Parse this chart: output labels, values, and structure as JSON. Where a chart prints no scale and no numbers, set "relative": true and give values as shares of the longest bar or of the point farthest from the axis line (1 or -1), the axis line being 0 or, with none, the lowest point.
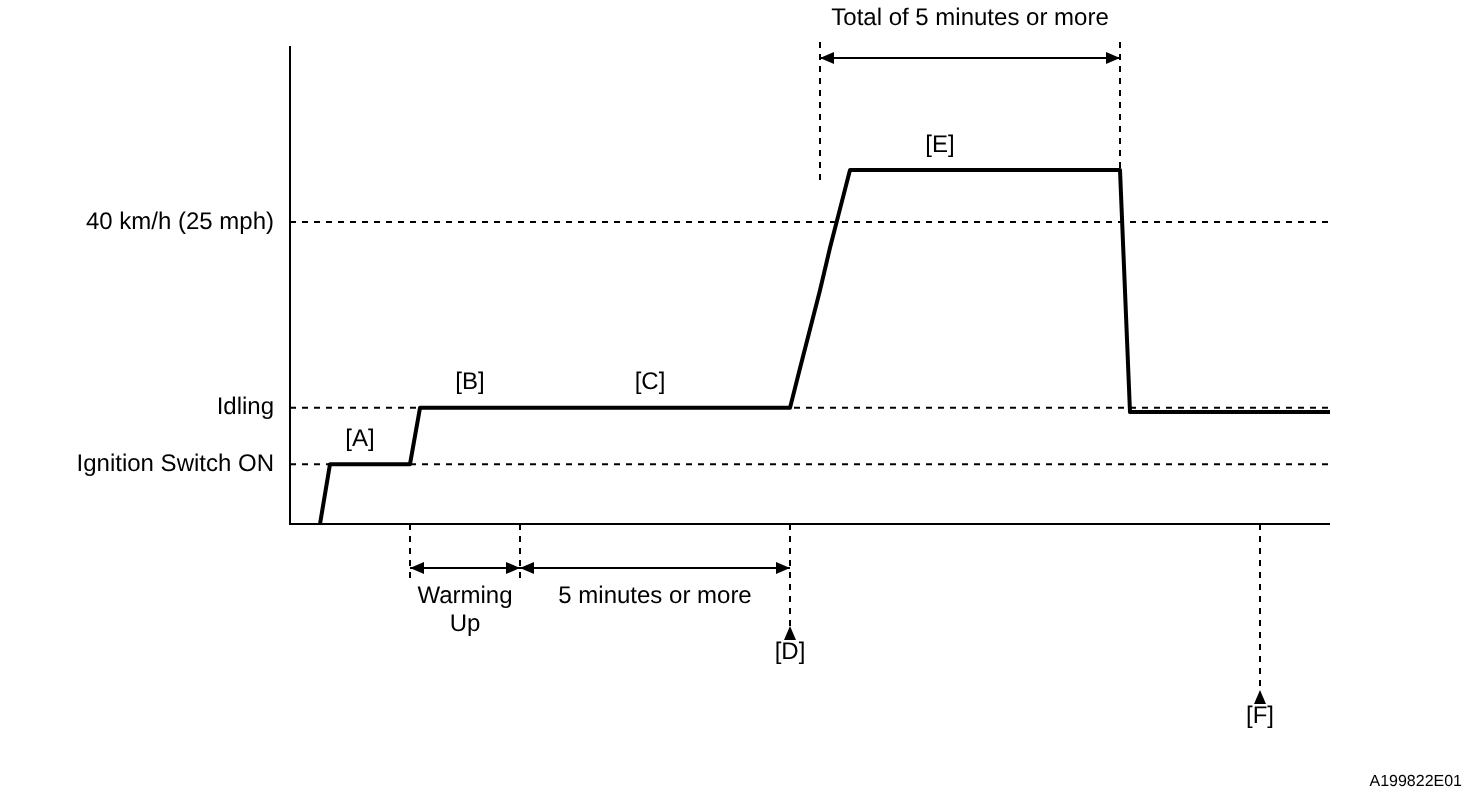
{
  "chart_data": {
    "type": "line",
    "relative": true,
    "tick_labels": false,
    "legend": false,
    "marker": "none",
    "line_style": "solid",
    "categories": [
      null,
      null,
      null,
      null,
      null,
      null,
      null,
      null,
      null,
      null,
      null,
      null,
      null,
      null,
      null,
      null,
      null,
      null,
      null,
      null,
      null,
      null,
      null,
      null,
      null,
      null,
      null,
      null,
      null,
      null,
      null,
      null,
      null,
      null,
      null,
      null,
      null,
      null,
      null,
      null,
      null,
      null,
      null,
      null,
      null,
      null,
      null,
      null,
      null,
      null,
      null,
      null,
      null,
      null,
      null,
      null,
      null,
      null,
      null,
      null,
      null,
      null,
      null,
      null,
      null,
      null,
      null,
      null,
      null,
      null,
      null,
      null,
      null,
      null,
      null,
      null,
      null,
      null,
      null,
      null,
      null,
      null,
      null,
      null,
      null,
      null,
      null,
      null,
      null,
      null,
      null,
      null,
      null,
      null,
      null,
      null,
      null,
      null,
      null,
      null,
      null,
      null,
      null,
      null,
      null
    ],
    "values": [
      null,
      null,
      null,
      0,
      0.169,
      0.169,
      0.169,
      0.169,
      0.169,
      0.169,
      0.169,
      0.169,
      0.169,
      0.328,
      0.328,
      0.328,
      0.328,
      0.328,
      0.328,
      0.328,
      0.328,
      0.328,
      0.328,
      0.328,
      0.328,
      0.328,
      0.328,
      0.328,
      0.328,
      0.328,
      0.328,
      0.328,
      0.328,
      0.328,
      0.328,
      0.328,
      0.328,
      0.328,
      0.328,
      0.328,
      0.328,
      0.328,
      0.328,
      0.328,
      0.328,
      0.328,
      0.328,
      0.328,
      0.328,
      0.328,
      0.328,
      0.44,
      0.55,
      0.66,
      0.78,
      0.89,
      1,
      1,
      1,
      1,
      1,
      1,
      1,
      1,
      1,
      1,
      1,
      1,
      1,
      1,
      1,
      1,
      1,
      1,
      1,
      1,
      1,
      1,
      1,
      1,
      1,
      1,
      1,
      1,
      0.316,
      0.316,
      0.316,
      0.316,
      0.316,
      0.316,
      0.316,
      0.316,
      0.316,
      0.316,
      0.316,
      0.316,
      0.316,
      0.316,
      0.316,
      0.316,
      0.316,
      0.316,
      0.316,
      0.316,
      0.316
    ],
    "color": "#000000",
    "ref_lines": [
      {
        "axis": "y",
        "value": 0.853,
        "label": "40 km/h (25 mph)"
      },
      {
        "axis": "y",
        "value": 0.328,
        "label": "Idling"
      },
      {
        "axis": "y",
        "value": 0.169,
        "label": "Ignition Switch ON"
      }
    ],
    "annotations": [
      "[A]",
      "[B]",
      "[C]",
      "[E]",
      "Warming Up",
      "5 minutes or more",
      "Total of 5 minutes or more",
      "[D]",
      "[F]",
      "A199822E01"
    ]
  }
}
